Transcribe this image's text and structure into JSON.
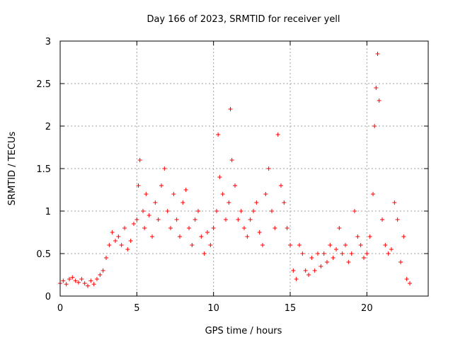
{
  "chart_data": {
    "type": "scatter",
    "title": "Day 166 of 2023, SRMTID for receiver yell",
    "xlabel": "GPS time / hours",
    "ylabel": "SRMTID / TECUs",
    "xlim": [
      0,
      24
    ],
    "ylim": [
      0,
      3
    ],
    "xticks": [
      0,
      5,
      10,
      15,
      20
    ],
    "xtick_labels": [
      "0",
      "5",
      "10",
      "15",
      "20"
    ],
    "yticks": [
      0,
      0.5,
      1,
      1.5,
      2,
      2.5,
      3
    ],
    "ytick_labels": [
      "0",
      "0.5",
      "1",
      "1.5",
      "2",
      "2.5",
      "3"
    ],
    "grid": true,
    "marker": "+",
    "series": [
      {
        "name": "SRMTID",
        "color": "#ff0000",
        "x": [
          0.0,
          0.2,
          0.4,
          0.6,
          0.8,
          1.0,
          1.2,
          1.4,
          1.6,
          1.8,
          2.0,
          2.2,
          2.4,
          2.6,
          2.8,
          3.0,
          3.2,
          3.4,
          3.6,
          3.8,
          4.0,
          4.2,
          4.4,
          4.6,
          4.8,
          5.0,
          5.1,
          5.2,
          5.4,
          5.5,
          5.6,
          5.8,
          6.0,
          6.2,
          6.4,
          6.6,
          6.8,
          7.0,
          7.2,
          7.4,
          7.6,
          7.8,
          8.0,
          8.2,
          8.4,
          8.6,
          8.8,
          9.0,
          9.2,
          9.4,
          9.6,
          9.8,
          10.0,
          10.2,
          10.3,
          10.4,
          10.6,
          10.8,
          11.0,
          11.1,
          11.2,
          11.4,
          11.6,
          11.8,
          12.0,
          12.2,
          12.4,
          12.6,
          12.8,
          13.0,
          13.2,
          13.4,
          13.6,
          13.8,
          14.0,
          14.2,
          14.4,
          14.6,
          14.8,
          15.0,
          15.2,
          15.4,
          15.6,
          15.8,
          16.0,
          16.2,
          16.4,
          16.6,
          16.8,
          17.0,
          17.2,
          17.4,
          17.6,
          17.8,
          18.0,
          18.2,
          18.4,
          18.6,
          18.8,
          19.0,
          19.2,
          19.4,
          19.6,
          19.8,
          20.0,
          20.2,
          20.4,
          20.5,
          20.6,
          20.7,
          20.8,
          21.0,
          21.2,
          21.4,
          21.6,
          21.8,
          22.0,
          22.2,
          22.4,
          22.6,
          22.8
        ],
        "y": [
          0.15,
          0.18,
          0.14,
          0.2,
          0.22,
          0.18,
          0.16,
          0.2,
          0.15,
          0.12,
          0.18,
          0.14,
          0.2,
          0.25,
          0.3,
          0.45,
          0.6,
          0.75,
          0.65,
          0.7,
          0.6,
          0.8,
          0.55,
          0.65,
          0.85,
          0.9,
          1.3,
          1.6,
          1.0,
          0.8,
          1.2,
          0.95,
          0.7,
          1.1,
          0.9,
          1.3,
          1.5,
          1.0,
          0.8,
          1.2,
          0.9,
          0.7,
          1.1,
          1.25,
          0.8,
          0.6,
          0.9,
          1.0,
          0.7,
          0.5,
          0.75,
          0.6,
          0.8,
          1.0,
          1.9,
          1.4,
          1.2,
          0.9,
          1.1,
          2.2,
          1.6,
          1.3,
          0.9,
          1.0,
          0.8,
          0.7,
          0.9,
          1.0,
          1.1,
          0.75,
          0.6,
          1.2,
          1.5,
          1.0,
          0.8,
          1.9,
          1.3,
          1.1,
          0.8,
          0.6,
          0.3,
          0.2,
          0.6,
          0.5,
          0.3,
          0.25,
          0.45,
          0.3,
          0.5,
          0.35,
          0.5,
          0.4,
          0.6,
          0.45,
          0.55,
          0.8,
          0.5,
          0.6,
          0.4,
          0.5,
          1.0,
          0.7,
          0.6,
          0.45,
          0.5,
          0.7,
          1.2,
          2.0,
          2.45,
          2.85,
          2.3,
          0.9,
          0.6,
          0.5,
          0.55,
          1.1,
          0.9,
          0.4,
          0.7,
          0.2,
          0.15
        ]
      }
    ],
    "annotations": []
  }
}
